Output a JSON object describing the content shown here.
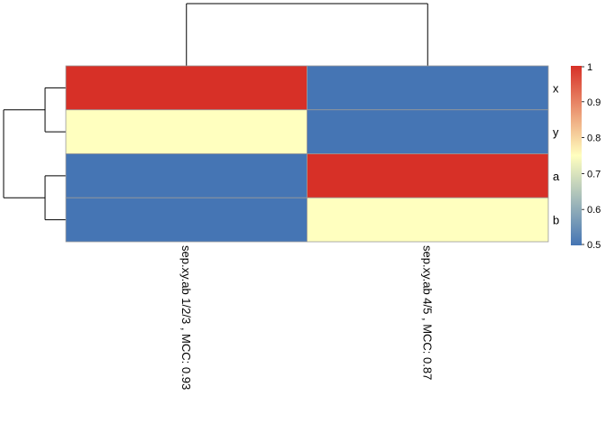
{
  "chart_data": {
    "type": "heatmap",
    "rows": [
      "x",
      "y",
      "a",
      "b"
    ],
    "columns": [
      "sep.xy.ab 1/2/3 , MCC:  0.93",
      "sep.xy.ab 4/5 , MCC:  0.87"
    ],
    "values": [
      [
        1.0,
        0.5
      ],
      [
        0.75,
        0.5
      ],
      [
        0.5,
        1.0
      ],
      [
        0.5,
        0.75
      ]
    ],
    "color_scale": {
      "min": 0.5,
      "max": 1.0,
      "stops": [
        {
          "value": 0.5,
          "color": "#4575b4"
        },
        {
          "value": 0.75,
          "color": "#ffffbf"
        },
        {
          "value": 1.0,
          "color": "#d73027"
        }
      ]
    },
    "legend": {
      "placement": "right",
      "ticks": [
        "1",
        "0.9",
        "0.8",
        "0.7",
        "0.6",
        "0.5"
      ],
      "tick_values": [
        1.0,
        0.9,
        0.8,
        0.7,
        0.6,
        0.5
      ]
    },
    "row_dendrogram": {
      "merges": [
        [
          "x",
          "y"
        ],
        [
          "a",
          "b"
        ],
        [
          "x-y",
          "a-b"
        ]
      ]
    },
    "column_dendrogram": {
      "merges": [
        [
          "col1",
          "col2"
        ]
      ]
    },
    "grid": false
  }
}
